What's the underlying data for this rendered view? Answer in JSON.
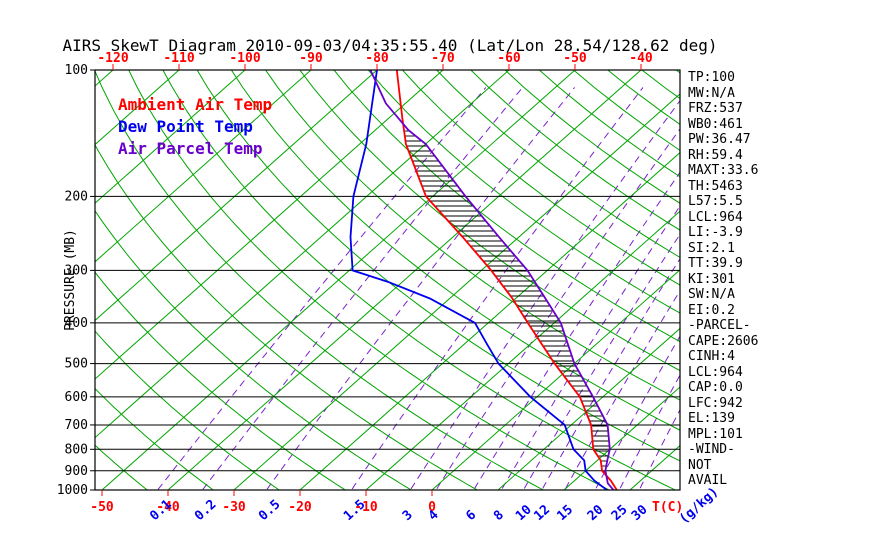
{
  "title": "AIRS SkewT Diagram 2010-09-03/04:35:55.40 (Lat/Lon 28.54/128.62 deg)",
  "legend": [
    {
      "label": "Ambient Air Temp",
      "color": "#ff0000"
    },
    {
      "label": "Dew Point Temp",
      "color": "#0000ee"
    },
    {
      "label": "Air Parcel Temp",
      "color": "#6a00cc"
    }
  ],
  "axes": {
    "pressure_axis_label": "PRESSURE (MB)",
    "pressure_ticks_mb": [
      100,
      200,
      300,
      400,
      500,
      600,
      700,
      800,
      900,
      1000
    ],
    "top_temp_ticks_c": [
      -120,
      -110,
      -100,
      -90,
      -80,
      -70,
      -60,
      -50,
      -40
    ],
    "bottom_temp_ticks_c": [
      -50,
      -40,
      -30,
      -20,
      -10,
      0
    ],
    "temp_unit_label": "T(C)",
    "mixing_ratio_values_gkg": [
      0.1,
      0.2,
      0.5,
      1.5,
      3,
      4,
      6,
      8,
      10,
      12,
      15,
      20,
      25,
      30
    ],
    "mixing_ratio_unit_label": "(g/kg)"
  },
  "stats_panel": [
    "TP:100",
    "MW:N/A",
    "FRZ:537",
    "WB0:461",
    "PW:36.47",
    "RH:59.4",
    "MAXT:33.6",
    "TH:5463",
    "L57:5.5",
    "LCL:964",
    "LI:-3.9",
    "SI:2.1",
    "TT:39.9",
    "KI:301",
    "SW:N/A",
    "EI:0.2",
    "-PARCEL-",
    "CAPE:2606",
    "CINH:4",
    "LCL:964",
    "CAP:0.0",
    "LFC:942",
    "EL:139",
    "MPL:101",
    "-WIND-",
    "NOT",
    "AVAIL"
  ],
  "colors": {
    "background": "#ffffff",
    "isotherm_green": "#00a400",
    "dry_adiabat_green": "#00a400",
    "mixing_ratio_purple": "#7a22cc",
    "pressure_line_black": "#000000",
    "ambient_red": "#ff0000",
    "dewpoint_blue": "#0000ee",
    "parcel_purple": "#6a00cc",
    "hatch_black": "#000000",
    "axis_text_black": "#000000",
    "temp_label_red": "#ff0000",
    "mixing_label_blue": "#0000ee"
  },
  "chart_data": {
    "type": "line",
    "subtype": "skewt_log_p",
    "title": "AIRS SkewT Diagram 2010-09-03/04:35:55.40 (Lat/Lon 28.54/128.62 deg)",
    "xlabel": "Temperature (C)",
    "ylabel": "Pressure (MB)",
    "pressure_range_mb": [
      100,
      1000
    ],
    "pressure_scale": "log",
    "temp_range_at_surface_c": [
      -50,
      40
    ],
    "skewed": true,
    "series": [
      {
        "name": "Ambient Air Temp",
        "color": "#ff0000",
        "points_mb_c": [
          [
            1000,
            28
          ],
          [
            950,
            25.5
          ],
          [
            900,
            22.5
          ],
          [
            850,
            20.5
          ],
          [
            800,
            17.5
          ],
          [
            700,
            13
          ],
          [
            600,
            6.5
          ],
          [
            500,
            -3
          ],
          [
            400,
            -14
          ],
          [
            350,
            -20.5
          ],
          [
            300,
            -28.5
          ],
          [
            250,
            -38.5
          ],
          [
            200,
            -51
          ],
          [
            150,
            -63
          ],
          [
            130,
            -68
          ],
          [
            100,
            -77
          ]
        ]
      },
      {
        "name": "Dew Point Temp",
        "color": "#0000ee",
        "points_mb_c": [
          [
            1000,
            26.5
          ],
          [
            950,
            23
          ],
          [
            900,
            20
          ],
          [
            850,
            18
          ],
          [
            800,
            14.5
          ],
          [
            700,
            9
          ],
          [
            600,
            -1
          ],
          [
            500,
            -11.5
          ],
          [
            450,
            -16.5
          ],
          [
            400,
            -22
          ],
          [
            350,
            -33
          ],
          [
            320,
            -42
          ],
          [
            300,
            -49.5
          ],
          [
            250,
            -55.5
          ],
          [
            200,
            -62
          ],
          [
            150,
            -69
          ],
          [
            100,
            -80
          ]
        ]
      },
      {
        "name": "Air Parcel Temp",
        "color": "#6a00cc",
        "points_mb_c": [
          [
            1000,
            27.5
          ],
          [
            964,
            25.5
          ],
          [
            900,
            23
          ],
          [
            850,
            21.5
          ],
          [
            800,
            20
          ],
          [
            700,
            15.5
          ],
          [
            600,
            8.5
          ],
          [
            500,
            0
          ],
          [
            400,
            -9
          ],
          [
            350,
            -15.5
          ],
          [
            300,
            -23
          ],
          [
            250,
            -33
          ],
          [
            200,
            -45
          ],
          [
            150,
            -60
          ],
          [
            139,
            -65
          ],
          [
            120,
            -73
          ],
          [
            100,
            -81
          ]
        ]
      }
    ],
    "cape_hatch_region": {
      "between": [
        "Ambient Air Temp",
        "Air Parcel Temp"
      ],
      "lfc_mb": 942,
      "el_mb": 139
    },
    "background_lines": {
      "isotherms_c": {
        "min": -160,
        "max": 40,
        "step": 10
      },
      "dry_adiabats_k": {
        "min": 220,
        "max": 460,
        "step": 10
      },
      "mixing_ratio_lines_gkg": [
        0.1,
        0.2,
        0.5,
        1.5,
        3,
        4,
        6,
        8,
        10,
        12,
        15,
        20,
        25,
        30
      ]
    }
  }
}
